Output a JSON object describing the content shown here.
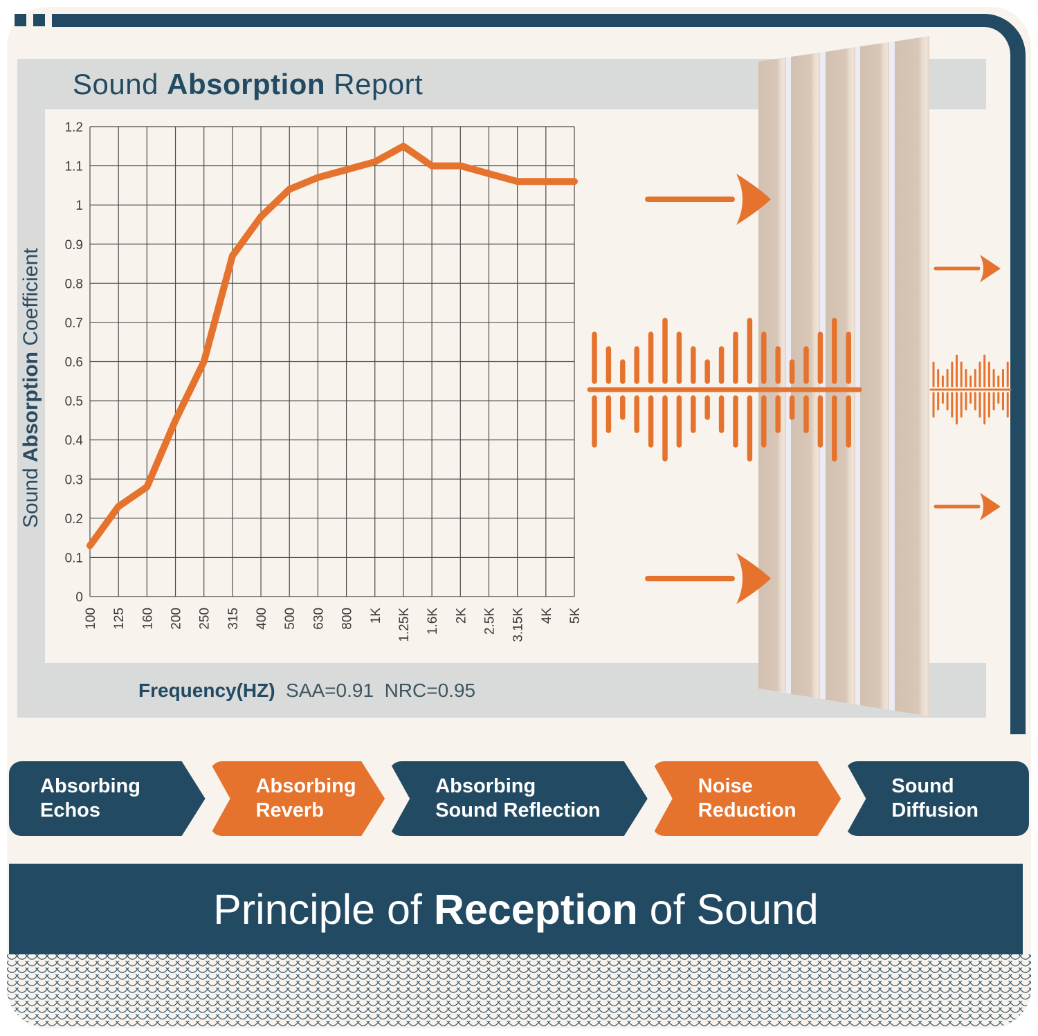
{
  "report": {
    "title_prefix": "Sound ",
    "title_bold": "Absorption",
    "title_suffix": " Report",
    "y_label_prefix": "Sound ",
    "y_label_bold": "Absorption",
    "y_label_suffix": " Coefficient",
    "x_label": "Frequency(HZ)",
    "saa": "SAA=0.91",
    "nrc": "NRC=0.95"
  },
  "chart_data": {
    "type": "line",
    "x": [
      "100",
      "125",
      "160",
      "200",
      "250",
      "315",
      "400",
      "500",
      "630",
      "800",
      "1K",
      "1.25K",
      "1.6K",
      "2K",
      "2.5K",
      "3.15K",
      "4K",
      "5K"
    ],
    "series": [
      {
        "name": "Sound Absorption Coefficient",
        "values": [
          0.13,
          0.23,
          0.28,
          0.45,
          0.6,
          0.87,
          0.97,
          1.04,
          1.07,
          1.09,
          1.11,
          1.15,
          1.1,
          1.1,
          1.08,
          1.06,
          1.06,
          1.06
        ]
      }
    ],
    "title": "Sound Absorption Report",
    "xlabel": "Frequency(HZ)",
    "ylabel": "Sound Absorption Coefficient",
    "ylim": [
      0,
      1.2
    ],
    "y_ticks": [
      "0",
      "0.1",
      "0.2",
      "0.3",
      "0.4",
      "0.5",
      "0.6",
      "0.7",
      "0.8",
      "0.9",
      "1",
      "1.1",
      "1.2"
    ],
    "grid": true,
    "legend_position": "none",
    "line_color": "#E5732E",
    "annotations": [
      "SAA=0.91",
      "NRC=0.95"
    ]
  },
  "banners": {
    "items": [
      {
        "label": "Absorbing\nEchos",
        "variant": "navy"
      },
      {
        "label": "Absorbing\nReverb",
        "variant": "orange"
      },
      {
        "label": "Absorbing\nSound Reflection",
        "variant": "navy"
      },
      {
        "label": "Noise\nReduction",
        "variant": "orange"
      },
      {
        "label": "Sound\nDiffusion",
        "variant": "navy"
      }
    ]
  },
  "footer": {
    "title_prefix": "Principle of ",
    "title_bold": "Reception",
    "title_suffix": " of Sound"
  },
  "colors": {
    "navy": "#224A63",
    "orange": "#E5732E",
    "grey_band": "#D9DBDA",
    "card_cream": "#F8F4ED",
    "panel_beige": "#D8C6B7",
    "panel_gap": "#EDEBF3",
    "gridline": "#4A4A4A"
  }
}
